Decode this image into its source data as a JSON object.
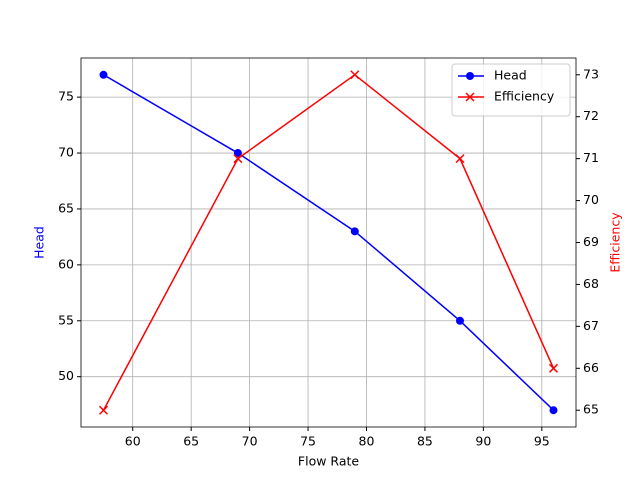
{
  "chart_data": {
    "type": "line",
    "x": [
      57.5,
      69,
      79,
      88,
      96
    ],
    "series": [
      {
        "name": "Head",
        "color": "#0000ff",
        "marker": "o",
        "values": [
          77,
          70,
          63,
          55,
          47
        ]
      },
      {
        "name": "Efficiency",
        "color": "#ff0000",
        "marker": "x",
        "axis": "y2",
        "values": [
          65,
          71,
          73,
          71,
          66
        ]
      }
    ],
    "xlabel": "Flow Rate",
    "ylabel": "Head",
    "y2label": "Efficiency",
    "xlim": [
      55.575,
      97.925
    ],
    "ylim": [
      45.5,
      78.5
    ],
    "y2lim": [
      64.6,
      73.4
    ],
    "xticks": [
      60,
      65,
      70,
      75,
      80,
      85,
      90,
      95
    ],
    "yticks": [
      50,
      55,
      60,
      65,
      70,
      75
    ],
    "y2ticks": [
      65,
      66,
      67,
      68,
      69,
      70,
      71,
      72,
      73
    ],
    "grid": true,
    "legend": "upper right"
  }
}
